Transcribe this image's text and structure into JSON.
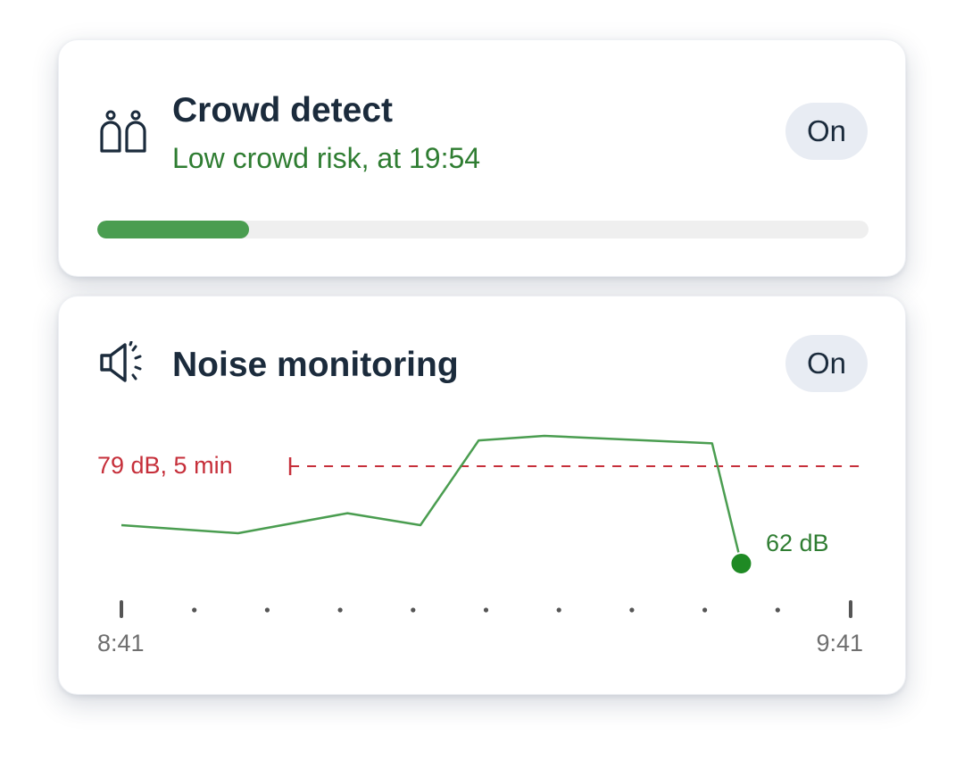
{
  "crowd_detect": {
    "title": "Crowd detect",
    "status": "Low crowd risk, at 19:54",
    "toggle_label": "On",
    "risk_level": 0.197,
    "icon": "people-icon",
    "accent_color": "#4a9d50",
    "status_color": "#2f7d32"
  },
  "noise_monitoring": {
    "title": "Noise monitoring",
    "toggle_label": "On",
    "icon": "speaker-icon",
    "threshold_label": "79 dB, 5 min",
    "current_label": "62 dB",
    "line_color": "#4a9d50",
    "threshold_color": "#c62f3a"
  },
  "chart_data": {
    "type": "line",
    "x_start_label": "8:41",
    "x_end_label": "9:41",
    "x": [
      0.0,
      1.6,
      3.1,
      4.1,
      4.9,
      5.8,
      8.1,
      8.5
    ],
    "values": [
      68.7,
      67.3,
      70.8,
      68.7,
      83.5,
      84.3,
      83.0,
      62.0
    ],
    "threshold": 79,
    "threshold_start": 2.4,
    "x_range": [
      0,
      10
    ],
    "y_range": [
      50,
      100
    ],
    "ticks": 11
  }
}
